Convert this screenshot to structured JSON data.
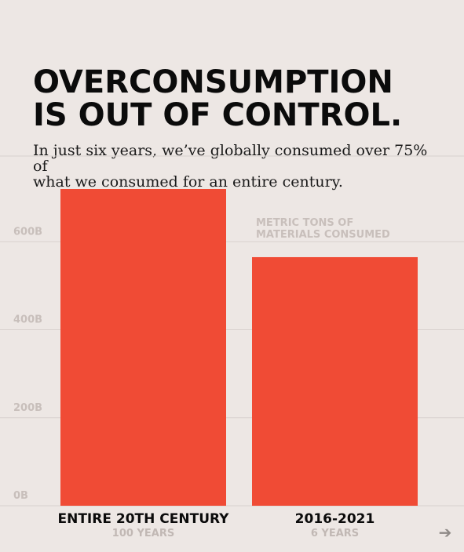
{
  "header": {
    "title": "OVERCONSUMPTION\nIS OUT OF CONTROL.",
    "subtitle": "In just six years, we’ve globally consumed over 75% of\nwhat we consumed for an entire century."
  },
  "chart_data": {
    "type": "bar",
    "ylabel": "METRIC TONS OF\nMATERIALS CONSUMED",
    "ylim": [
      0,
      720
    ],
    "y_ticks": [
      0,
      200,
      400,
      600
    ],
    "y_tick_labels": [
      "0B",
      "200B",
      "400B",
      "600B"
    ],
    "grid": true,
    "categories": [
      "ENTIRE 20TH CENTURY",
      "2016-2021"
    ],
    "category_sublabels": [
      "100 YEARS",
      "6 YEARS"
    ],
    "values": [
      720,
      565
    ],
    "value_unit": "billion metric tons",
    "bar_color": "#f04b35"
  },
  "nav": {
    "next_icon": "arrow-right-icon",
    "next_glyph": "➔"
  },
  "colors": {
    "background": "#ede7e4",
    "bar": "#f04b35",
    "gridline": "#d8d1ce",
    "tick_label": "#c8bfbb",
    "category_label": "#0b0b0b",
    "sublabel": "#c1b8b4"
  }
}
